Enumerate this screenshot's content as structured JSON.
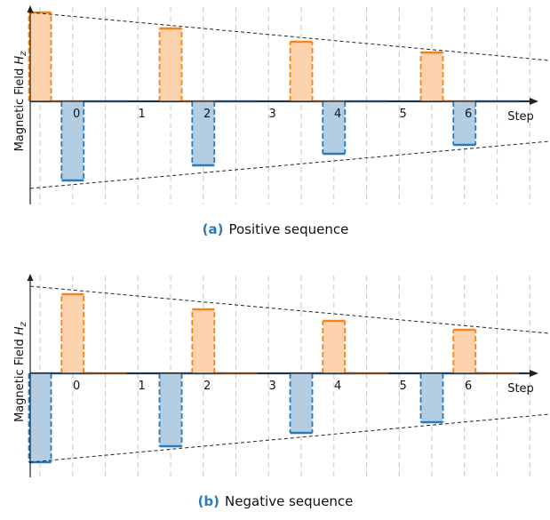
{
  "colors": {
    "positive_edge": "#f0851e",
    "positive_fill": "#fcd3ad",
    "negative_edge": "#2a7ab9",
    "negative_fill": "#b3cde3",
    "baseline": "#1f4e79",
    "grid": "#cccccc",
    "caption_accent": "#2a7ab9"
  },
  "chart_data": [
    {
      "type": "bar",
      "panel_letter": "(a)",
      "caption": "Positive sequence",
      "ylabel_text": "Magnetic Field ",
      "ylabel_symbol": "H",
      "ylabel_subscript": "z",
      "xlabel": "Step",
      "xtick_labels": [
        "0",
        "1",
        "2",
        "3",
        "4",
        "5",
        "6"
      ],
      "xlim": [
        -0.65,
        7.5
      ],
      "ylim": [
        -1.25,
        1.3
      ],
      "grid": "vertical dashed",
      "pulse_width": 0.34,
      "pulses": [
        {
          "x": -0.5,
          "value": 1.0
        },
        {
          "x": 0.0,
          "value": -0.89
        },
        {
          "x": 1.5,
          "value": 0.82
        },
        {
          "x": 2.0,
          "value": -0.72
        },
        {
          "x": 3.5,
          "value": 0.67
        },
        {
          "x": 4.0,
          "value": -0.59
        },
        {
          "x": 5.5,
          "value": 0.55
        },
        {
          "x": 6.0,
          "value": -0.49
        }
      ],
      "envelope_upper": {
        "x": [
          -0.65,
          7.5
        ],
        "y": [
          1.0,
          0.45
        ]
      },
      "envelope_lower": {
        "x": [
          -0.65,
          7.5
        ],
        "y": [
          -0.98,
          -0.44
        ]
      }
    },
    {
      "type": "bar",
      "panel_letter": "(b)",
      "caption": "Negative sequence",
      "ylabel_text": "Magnetic Field ",
      "ylabel_symbol": "H",
      "ylabel_subscript": "z",
      "xlabel": "Step",
      "xtick_labels": [
        "0",
        "1",
        "2",
        "3",
        "4",
        "5",
        "6"
      ],
      "xlim": [
        -0.65,
        7.5
      ],
      "ylim": [
        -1.25,
        1.3
      ],
      "grid": "vertical dashed",
      "pulse_width": 0.34,
      "pulses": [
        {
          "x": -0.5,
          "value": -1.0
        },
        {
          "x": 0.0,
          "value": 0.89
        },
        {
          "x": 1.5,
          "value": -0.82
        },
        {
          "x": 2.0,
          "value": 0.72
        },
        {
          "x": 3.5,
          "value": -0.67
        },
        {
          "x": 4.0,
          "value": 0.59
        },
        {
          "x": 5.5,
          "value": -0.55
        },
        {
          "x": 6.0,
          "value": 0.49
        }
      ],
      "envelope_upper": {
        "x": [
          -0.65,
          7.5
        ],
        "y": [
          0.98,
          0.44
        ]
      },
      "envelope_lower": {
        "x": [
          -0.65,
          7.5
        ],
        "y": [
          -1.0,
          -0.45
        ]
      }
    }
  ]
}
